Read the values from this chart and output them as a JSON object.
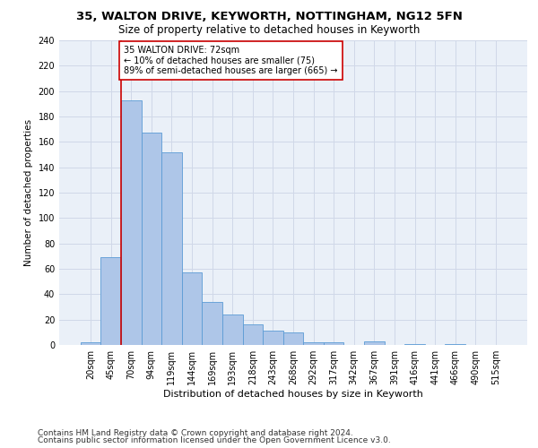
{
  "title1": "35, WALTON DRIVE, KEYWORTH, NOTTINGHAM, NG12 5FN",
  "title2": "Size of property relative to detached houses in Keyworth",
  "xlabel": "Distribution of detached houses by size in Keyworth",
  "ylabel": "Number of detached properties",
  "categories": [
    "20sqm",
    "45sqm",
    "70sqm",
    "94sqm",
    "119sqm",
    "144sqm",
    "169sqm",
    "193sqm",
    "218sqm",
    "243sqm",
    "268sqm",
    "292sqm",
    "317sqm",
    "342sqm",
    "367sqm",
    "391sqm",
    "416sqm",
    "441sqm",
    "466sqm",
    "490sqm",
    "515sqm"
  ],
  "values": [
    2,
    69,
    193,
    167,
    152,
    57,
    34,
    24,
    16,
    11,
    10,
    2,
    2,
    0,
    3,
    0,
    1,
    0,
    1,
    0,
    0
  ],
  "bar_color": "#aec6e8",
  "bar_edge_color": "#5b9bd5",
  "vline_color": "#cc0000",
  "vline_x_index": 1.5,
  "annotation_text": "35 WALTON DRIVE: 72sqm\n← 10% of detached houses are smaller (75)\n89% of semi-detached houses are larger (665) →",
  "annotation_box_color": "white",
  "annotation_box_edge_color": "#cc0000",
  "ylim": [
    0,
    240
  ],
  "yticks": [
    0,
    20,
    40,
    60,
    80,
    100,
    120,
    140,
    160,
    180,
    200,
    220,
    240
  ],
  "grid_color": "#d0d8e8",
  "bg_color": "#eaf0f8",
  "footer1": "Contains HM Land Registry data © Crown copyright and database right 2024.",
  "footer2": "Contains public sector information licensed under the Open Government Licence v3.0.",
  "title1_fontsize": 9.5,
  "title2_fontsize": 8.5,
  "xlabel_fontsize": 8,
  "ylabel_fontsize": 7.5,
  "tick_fontsize": 7,
  "annotation_fontsize": 7,
  "footer_fontsize": 6.5
}
